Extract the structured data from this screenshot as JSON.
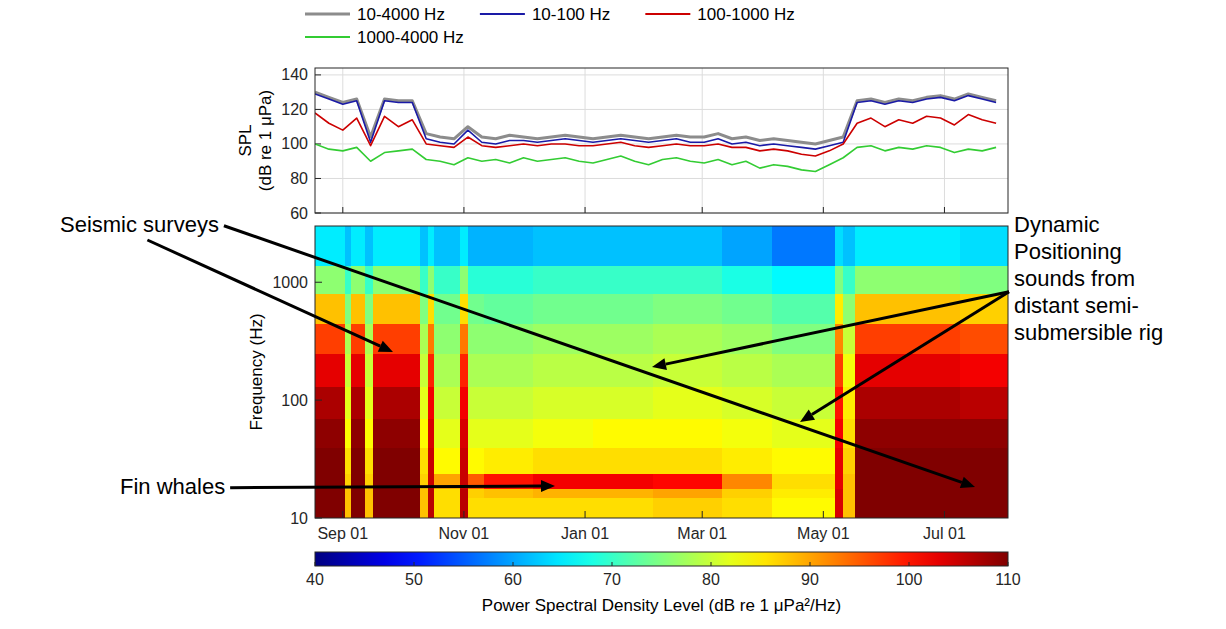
{
  "chart_data": [
    {
      "type": "line",
      "ylabel": "SPL (dB re 1 μPa)",
      "x": [
        0,
        7,
        14,
        21,
        28,
        35,
        42,
        49,
        56,
        63,
        70,
        77,
        84,
        91,
        98,
        105,
        112,
        119,
        126,
        133,
        140,
        147,
        154,
        161,
        168,
        175,
        182,
        189,
        196,
        203,
        210,
        217,
        224,
        231,
        238,
        245,
        252,
        259,
        266,
        273,
        280,
        287,
        294,
        301,
        308,
        315,
        322,
        329,
        336,
        343
      ],
      "xlim": [
        0,
        349
      ],
      "xticks": [
        14,
        75,
        136,
        195,
        256,
        317
      ],
      "ylim": [
        60,
        144
      ],
      "yticks": [
        60,
        80,
        100,
        120,
        140
      ],
      "grid": true,
      "legend": "top",
      "tick_labels": "y",
      "series": [
        {
          "name": "10-4000 Hz",
          "color": "#8c8c8c",
          "values": [
            130,
            127,
            124,
            126,
            104,
            126,
            125,
            125,
            106,
            104,
            103,
            110,
            104,
            103,
            105,
            104,
            103,
            104,
            105,
            104,
            103,
            104,
            105,
            104,
            103,
            104,
            105,
            104,
            104,
            106,
            103,
            104,
            102,
            103,
            102,
            101,
            100,
            102,
            104,
            125,
            126,
            124,
            126,
            125,
            127,
            128,
            126,
            129,
            127,
            125
          ]
        },
        {
          "name": "10-100 Hz",
          "color": "#1a1aa6",
          "values": [
            129,
            126,
            123,
            125,
            101,
            125,
            124,
            124,
            103,
            101,
            100,
            108,
            101,
            100,
            102,
            102,
            101,
            102,
            103,
            102,
            101,
            102,
            103,
            102,
            101,
            102,
            103,
            101,
            101,
            103,
            100,
            101,
            99,
            100,
            99,
            98,
            97,
            99,
            101,
            124,
            125,
            123,
            125,
            124,
            126,
            127,
            125,
            128,
            126,
            124
          ]
        },
        {
          "name": "100-1000 Hz",
          "color": "#cc0000",
          "values": [
            118,
            112,
            108,
            115,
            99,
            116,
            110,
            114,
            100,
            99,
            98,
            104,
            99,
            98,
            99,
            100,
            99,
            100,
            100,
            99,
            99,
            100,
            101,
            99,
            98,
            99,
            100,
            99,
            99,
            100,
            98,
            98,
            96,
            97,
            96,
            94,
            93,
            96,
            100,
            112,
            115,
            110,
            114,
            112,
            116,
            115,
            111,
            117,
            114,
            112
          ]
        },
        {
          "name": "1000-4000 Hz",
          "color": "#33cc33",
          "values": [
            100,
            97,
            96,
            98,
            90,
            95,
            96,
            97,
            91,
            90,
            88,
            92,
            90,
            91,
            89,
            92,
            90,
            91,
            92,
            90,
            89,
            91,
            93,
            90,
            88,
            91,
            92,
            90,
            89,
            91,
            88,
            90,
            86,
            88,
            87,
            85,
            84,
            88,
            92,
            98,
            99,
            96,
            98,
            97,
            99,
            98,
            95,
            97,
            96,
            98
          ]
        }
      ]
    },
    {
      "type": "heatmap",
      "ylabel": "Frequency (Hz)",
      "x_bins": [
        0,
        15,
        18,
        25,
        29,
        53,
        57,
        60,
        73,
        77,
        85,
        110,
        140,
        170,
        205,
        230,
        262,
        266,
        272,
        300,
        325,
        349
      ],
      "y_bins": [
        10,
        15,
        18,
        24,
        40,
        70,
        130,
        250,
        450,
        800,
        1400,
        3000
      ],
      "cells": [
        [
          112,
          88,
          112,
          88,
          112,
          88,
          106,
          86,
          106,
          86,
          86,
          86,
          86,
          87,
          86,
          84,
          104,
          88,
          112,
          112,
          111
        ],
        [
          111,
          88,
          111,
          88,
          111,
          88,
          106,
          86,
          106,
          87,
          88,
          89,
          89,
          90,
          87,
          85,
          104,
          88,
          111,
          111,
          110
        ],
        [
          110,
          87,
          110,
          87,
          110,
          87,
          105,
          90,
          105,
          95,
          100,
          102,
          102,
          101,
          92,
          86,
          103,
          88,
          110,
          110,
          110
        ],
        [
          110,
          86,
          110,
          86,
          110,
          86,
          105,
          84,
          105,
          84,
          85,
          86,
          86,
          86,
          85,
          84,
          103,
          87,
          110,
          110,
          110
        ],
        [
          109,
          84,
          109,
          84,
          109,
          84,
          104,
          82,
          104,
          82,
          82,
          83,
          84,
          84,
          83,
          82,
          102,
          86,
          109,
          109,
          109
        ],
        [
          107,
          82,
          107,
          82,
          107,
          82,
          102,
          80,
          102,
          80,
          80,
          81,
          81,
          82,
          81,
          80,
          100,
          85,
          107,
          107,
          106
        ],
        [
          103,
          80,
          103,
          80,
          103,
          80,
          99,
          78,
          99,
          78,
          78,
          79,
          79,
          80,
          79,
          78,
          97,
          83,
          103,
          103,
          102
        ],
        [
          97,
          78,
          97,
          78,
          97,
          78,
          93,
          76,
          93,
          76,
          76,
          77,
          77,
          78,
          77,
          75,
          92,
          80,
          97,
          97,
          96
        ],
        [
          88,
          75,
          88,
          75,
          88,
          75,
          86,
          74,
          86,
          74,
          73,
          74,
          74,
          75,
          74,
          72,
          85,
          76,
          88,
          88,
          87
        ],
        [
          76,
          70,
          76,
          70,
          76,
          70,
          76,
          70,
          76,
          69,
          69,
          70,
          70,
          70,
          68,
          66,
          75,
          70,
          76,
          76,
          75
        ],
        [
          65,
          62,
          65,
          62,
          65,
          62,
          65,
          62,
          65,
          61,
          61,
          62,
          62,
          62,
          60,
          57,
          64,
          62,
          65,
          65,
          64
        ]
      ],
      "xlim": [
        0,
        349
      ],
      "xticks": [
        {
          "value": 14,
          "label": "Sep 01"
        },
        {
          "value": 75,
          "label": "Nov 01"
        },
        {
          "value": 136,
          "label": "Jan 01"
        },
        {
          "value": 195,
          "label": "Mar 01"
        },
        {
          "value": 256,
          "label": "May 01"
        },
        {
          "value": 317,
          "label": "Jul 01"
        }
      ],
      "ylim": [
        10,
        3000
      ],
      "yticks": [
        10,
        100,
        1000
      ],
      "log": "y",
      "clim": [
        40,
        110
      ],
      "cticks": [
        40,
        50,
        60,
        70,
        80,
        90,
        100,
        110
      ],
      "clabel": "Power Spectral Density Level (dB re 1 μPa²/Hz)",
      "annotations": [
        {
          "text": "Seismic surveys"
        },
        {
          "text": "Fin whales"
        },
        {
          "text": "Dynamic Positioning sounds from distant semi-submersible rig"
        }
      ]
    }
  ]
}
